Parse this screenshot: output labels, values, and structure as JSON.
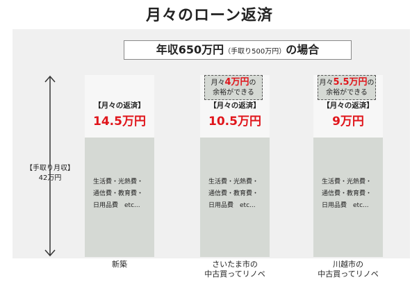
{
  "title": "月々のローン返済",
  "subtitle": {
    "main": "年収650万円",
    "note": "（手取り500万円）",
    "suffix": "の場合"
  },
  "income": {
    "line1": "【手取り月収】",
    "line2": "42万円"
  },
  "repay_label": "【月々の返済】",
  "expenses_lines": [
    "生活費・光熱費・",
    "通信費・教育費・",
    "日用品費　etc..."
  ],
  "spare": {
    "prefix": "月々",
    "suffix": "の",
    "line2": "余裕ができる"
  },
  "chart_data": {
    "type": "bar",
    "title": "月々のローン返済",
    "subtitle": "年収650万円（手取り500万円）の場合",
    "unit": "万円",
    "total_income": 42,
    "categories": [
      {
        "name": "新築",
        "label_lines": [
          "新築"
        ]
      },
      {
        "name": "さいたま市の中古買ってリノベ",
        "label_lines": [
          "さいたま市の",
          "中古買ってリノベ"
        ]
      },
      {
        "name": "川越市の中古買ってリノベ",
        "label_lines": [
          "川越市の",
          "中古買ってリノベ"
        ]
      }
    ],
    "series": [
      {
        "name": "月々の返済",
        "values": [
          14.5,
          10.5,
          9
        ],
        "labels": [
          "14.5万円",
          "10.5万円",
          "9万円"
        ]
      },
      {
        "name": "月々の余裕",
        "values": [
          0,
          4,
          5.5
        ],
        "labels": [
          "",
          "4万円",
          "5.5万円"
        ]
      }
    ]
  },
  "colors": {
    "accent": "#e0151b",
    "expense_fill": "#d5d9d4",
    "panel": "#f0f0f0"
  }
}
